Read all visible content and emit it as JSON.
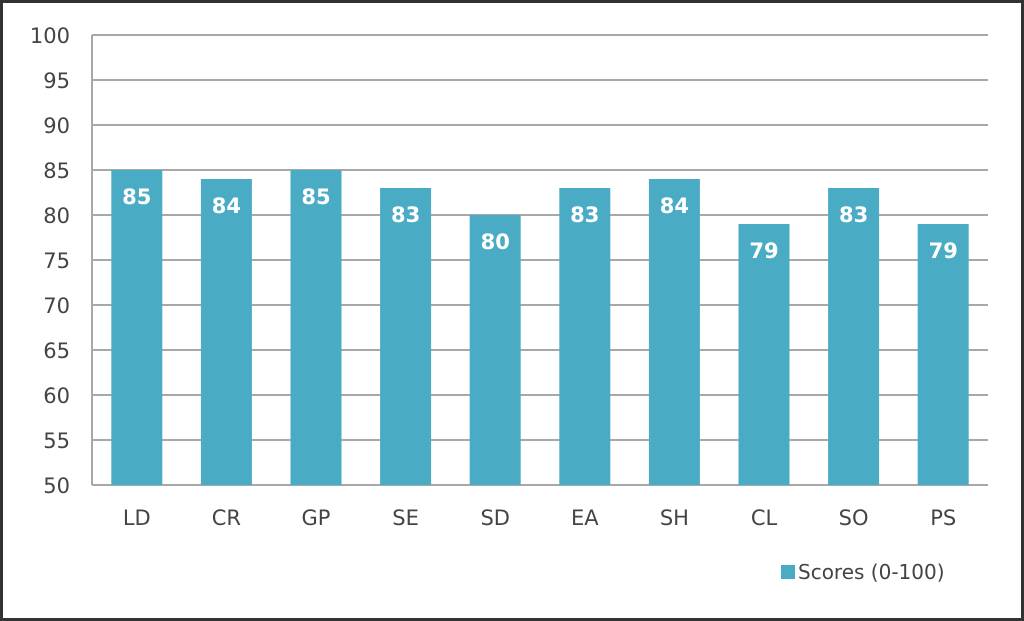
{
  "chart_data": {
    "type": "bar",
    "title": "",
    "xlabel": "",
    "ylabel": "",
    "categories": [
      "LD",
      "CR",
      "GP",
      "SE",
      "SD",
      "EA",
      "SH",
      "CL",
      "SO",
      "PS"
    ],
    "series": [
      {
        "name": "Scores (0-100)",
        "values": [
          85,
          84,
          85,
          83,
          80,
          83,
          84,
          79,
          83,
          79
        ],
        "color": "#4aabc4"
      }
    ],
    "ylim": [
      50,
      100
    ],
    "yticks": [
      50,
      55,
      60,
      65,
      70,
      75,
      80,
      85,
      90,
      95,
      100
    ],
    "grid": true,
    "data_labels": true,
    "legend_position": "bottom-right"
  }
}
